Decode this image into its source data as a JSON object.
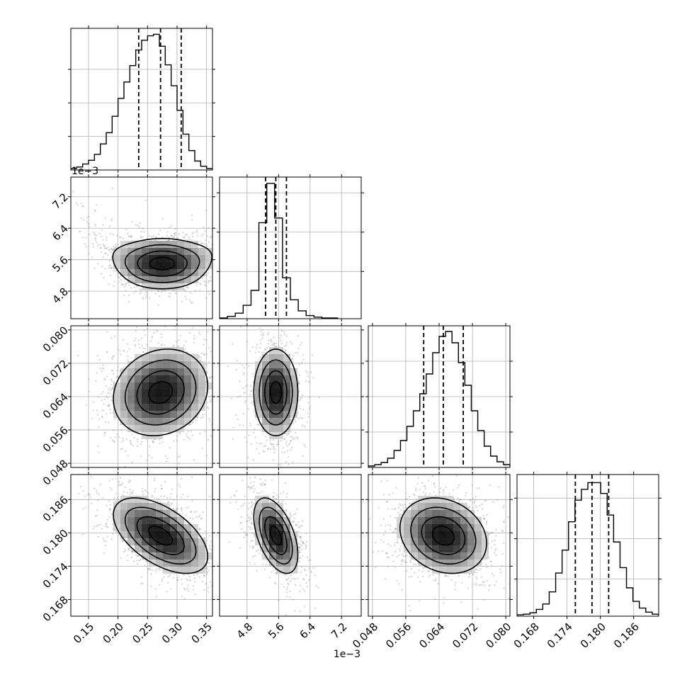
{
  "colors": {
    "background": "#ffffff",
    "axes_frame": "#000000",
    "grid": "#b0b0b0",
    "scatter_points": "#7f7f7f",
    "density_dark": "#000000",
    "density_light": "#ffffff"
  },
  "chart_data": {
    "type": "corner",
    "grid": true,
    "n_params": 4,
    "params": [
      {
        "range": [
          0.12,
          0.36
        ],
        "ticks": [
          0.15,
          0.2,
          0.25,
          0.3,
          0.35
        ],
        "tick_labels": [
          "0.15",
          "0.20",
          "0.25",
          "0.30",
          "0.35"
        ],
        "quantiles": [
          0.235,
          0.272,
          0.307
        ],
        "offset_label": ""
      },
      {
        "range": [
          0.0041,
          0.0077
        ],
        "ticks": [
          0.0048,
          0.0056,
          0.0064,
          0.0072
        ],
        "tick_labels": [
          "4.8",
          "5.6",
          "6.4",
          "7.2"
        ],
        "quantiles": [
          0.00527,
          0.00553,
          0.0058
        ],
        "offset_label": "1e−3"
      },
      {
        "range": [
          0.047,
          0.081
        ],
        "ticks": [
          0.048,
          0.056,
          0.064,
          0.072,
          0.08
        ],
        "tick_labels": [
          "0.048",
          "0.056",
          "0.064",
          "0.072",
          "0.080"
        ],
        "quantiles": [
          0.0603,
          0.065,
          0.0698
        ],
        "offset_label": ""
      },
      {
        "range": [
          0.165,
          0.1905
        ],
        "ticks": [
          0.168,
          0.174,
          0.18,
          0.186
        ],
        "tick_labels": [
          "0.168",
          "0.174",
          "0.180",
          "0.186"
        ],
        "quantiles": [
          0.1755,
          0.1785,
          0.1815
        ],
        "offset_label": ""
      }
    ],
    "histograms": [
      {
        "counts": [
          2,
          4,
          8,
          13,
          21,
          35,
          50,
          72,
          96,
          118,
          140,
          161,
          174,
          180,
          182,
          166,
          141,
          113,
          80,
          48,
          26,
          12,
          5,
          2
        ],
        "ymax": 190,
        "y_ticks": [
          45,
          90,
          135
        ]
      },
      {
        "counts": [
          1,
          3,
          7,
          17,
          36,
          122,
          172,
          128,
          52,
          24,
          10,
          4,
          2,
          1,
          1
        ],
        "bin_range": [
          0.0041,
          0.0071
        ],
        "ymax": 180,
        "y_ticks": [
          60,
          110,
          160
        ]
      },
      {
        "counts": [
          2,
          4,
          7,
          13,
          24,
          38,
          58,
          80,
          104,
          132,
          162,
          185,
          192,
          176,
          148,
          116,
          80,
          52,
          30,
          16,
          8,
          4
        ],
        "ymax": 200,
        "y_ticks": [
          50,
          100,
          150
        ]
      },
      {
        "counts": [
          2,
          3,
          5,
          10,
          18,
          36,
          64,
          98,
          140,
          172,
          188,
          198,
          198,
          182,
          150,
          110,
          72,
          42,
          22,
          12,
          6,
          3
        ],
        "ymax": 210,
        "y_ticks": [
          55,
          115,
          175
        ]
      }
    ],
    "pairs": [
      {
        "x": 0,
        "y": 1,
        "cx": 0.275,
        "cy": 0.0055,
        "sx": 0.042,
        "sy": 0.00032,
        "rho": 0.0,
        "n_points": 1200,
        "curvature": 0.75
      },
      {
        "x": 0,
        "y": 2,
        "cx": 0.272,
        "cy": 0.065,
        "sx": 0.04,
        "sy": 0.0052,
        "rho": 0.15,
        "n_points": 1200,
        "curvature": 0
      },
      {
        "x": 1,
        "y": 2,
        "cx": 0.00553,
        "cy": 0.065,
        "sx": 0.00028,
        "sy": 0.0052,
        "rho": 0.0,
        "n_points": 900,
        "curvature": 0
      },
      {
        "x": 0,
        "y": 3,
        "cx": 0.272,
        "cy": 0.1795,
        "sx": 0.04,
        "sy": 0.0034,
        "rho": -0.55,
        "n_points": 1200,
        "curvature": 0
      },
      {
        "x": 1,
        "y": 3,
        "cx": 0.00553,
        "cy": 0.1795,
        "sx": 0.00028,
        "sy": 0.0034,
        "rho": -0.5,
        "n_points": 900,
        "curvature": 0
      },
      {
        "x": 2,
        "y": 3,
        "cx": 0.065,
        "cy": 0.1795,
        "sx": 0.0052,
        "sy": 0.0034,
        "rho": -0.2,
        "n_points": 1200,
        "curvature": 0
      }
    ]
  }
}
